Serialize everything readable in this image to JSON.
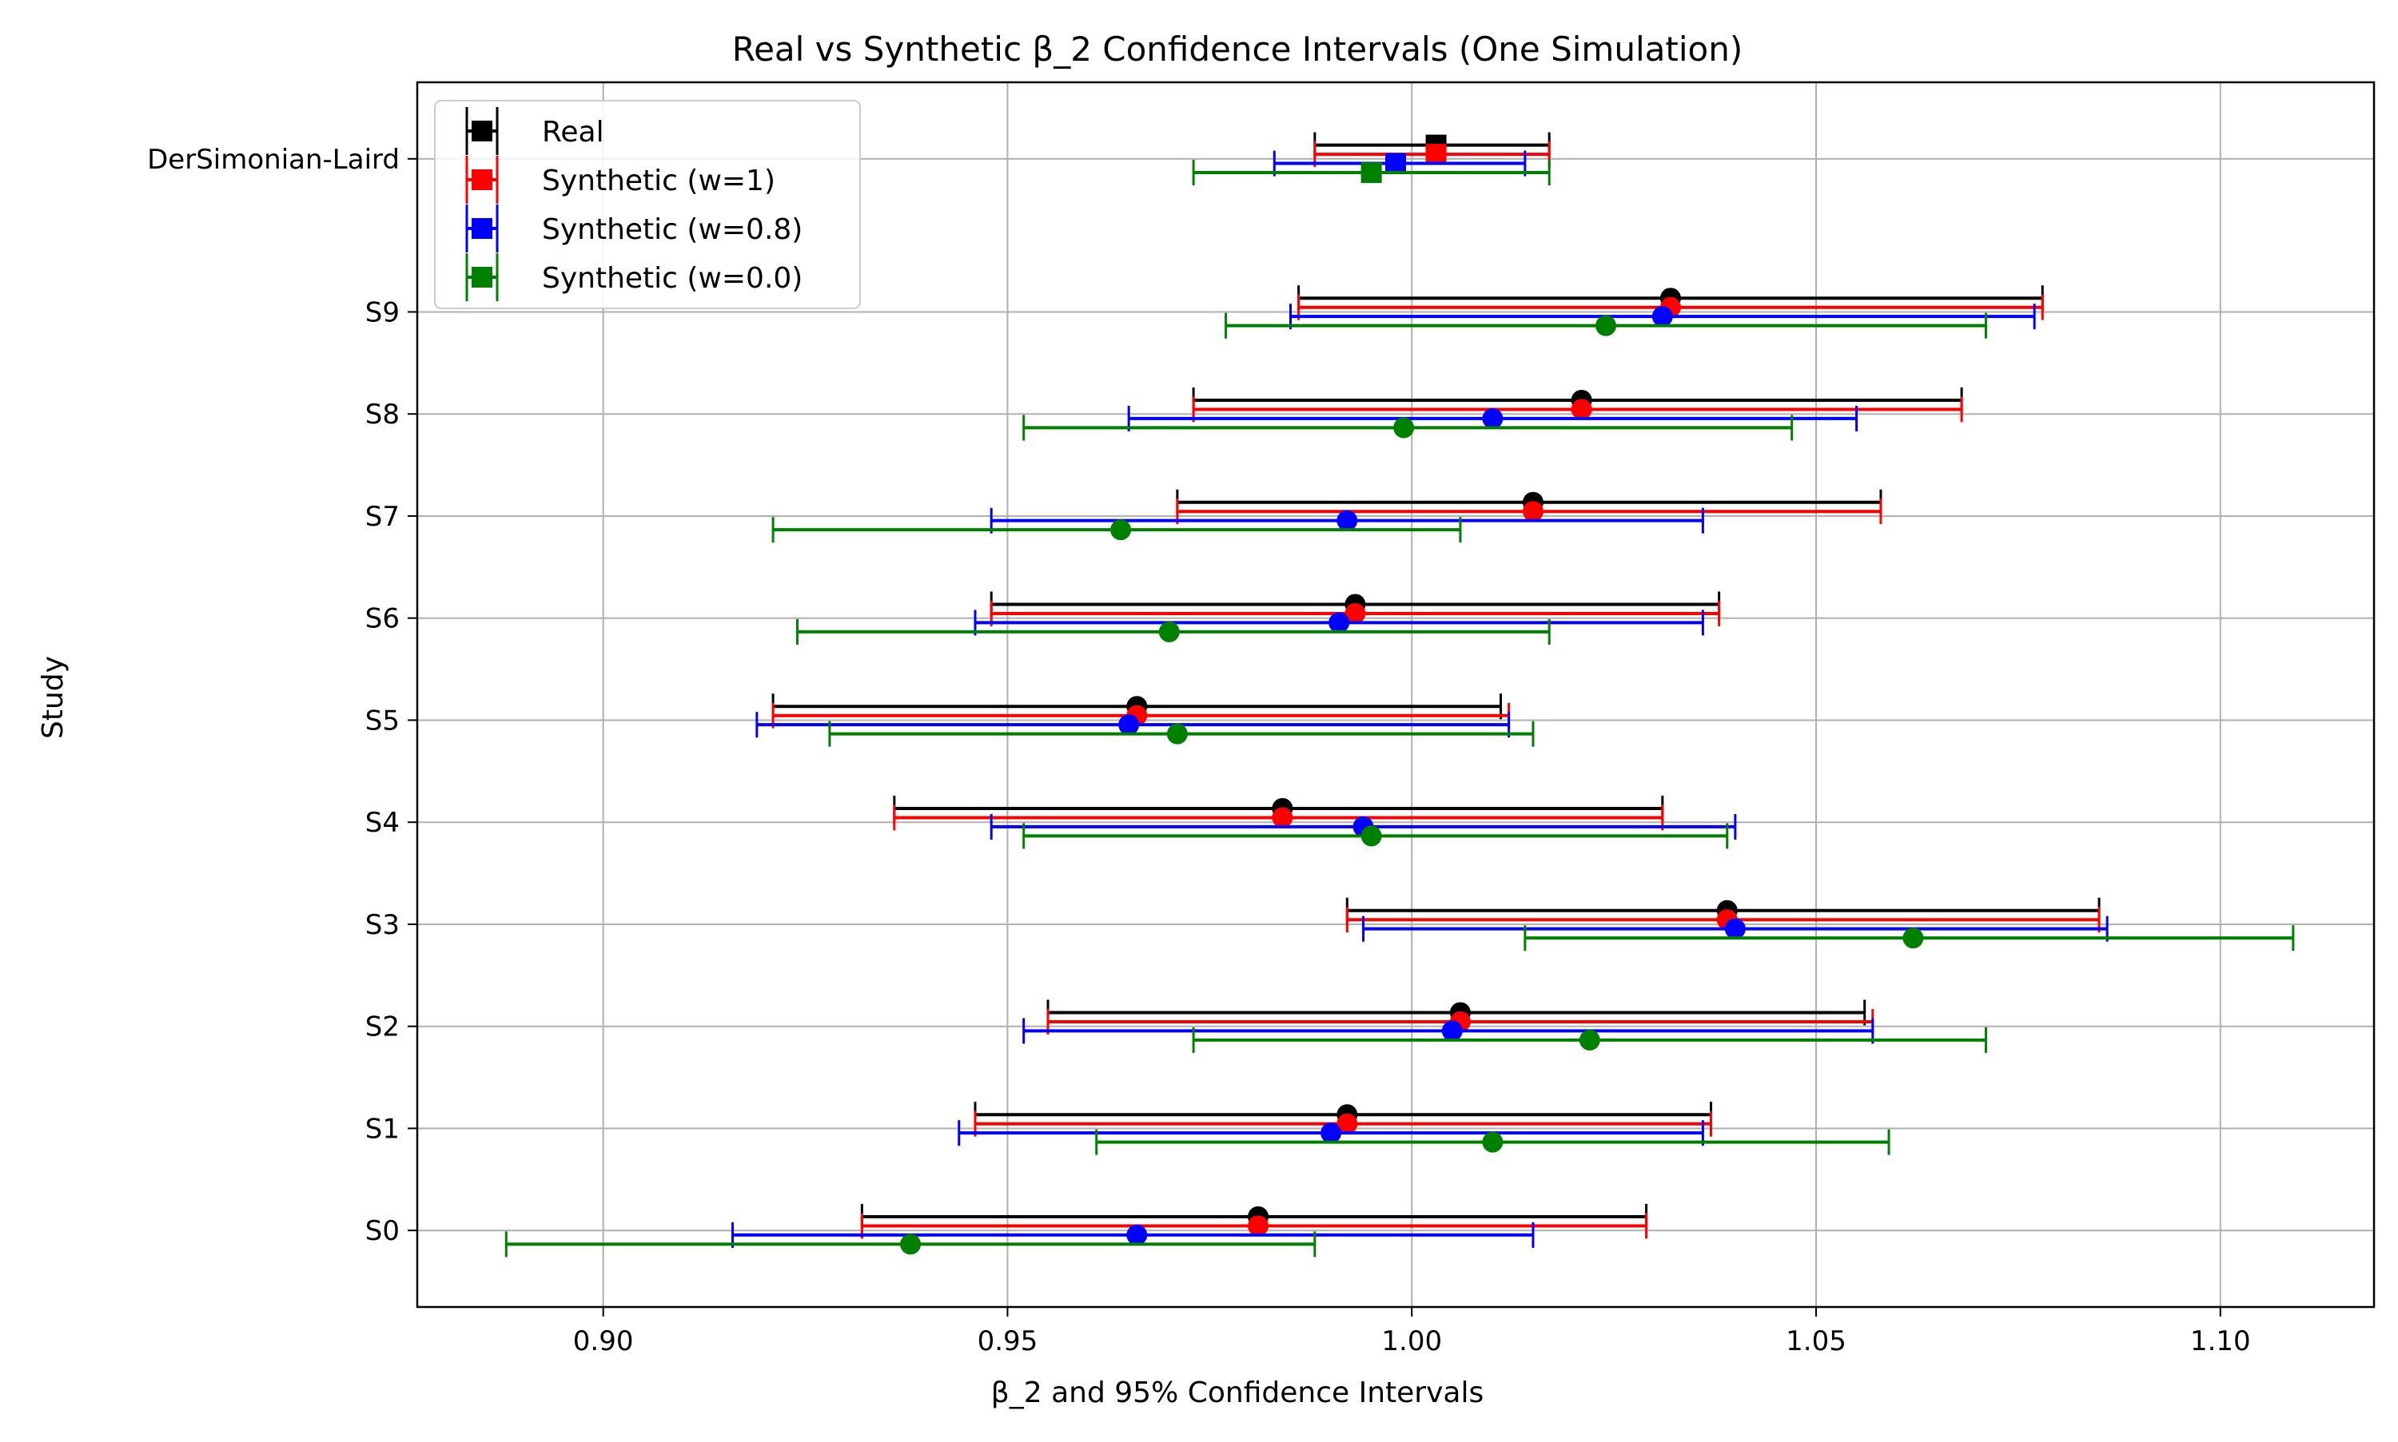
{
  "chart_data": {
    "type": "forest",
    "title": "Real vs Synthetic β_2 Confidence Intervals (One Simulation)",
    "xlabel": "β_2 and 95% Confidence Intervals",
    "ylabel": "Study",
    "xlim": [
      0.877,
      1.119
    ],
    "xticks": [
      0.9,
      0.95,
      1.0,
      1.05,
      1.1
    ],
    "xtick_labels": [
      "0.90",
      "0.95",
      "1.00",
      "1.05",
      "1.10"
    ],
    "studies": [
      "S0",
      "S1",
      "S2",
      "S3",
      "S4",
      "S5",
      "S6",
      "S7",
      "S8",
      "S9",
      "DerSimonian-Laird"
    ],
    "grid": true,
    "legend_position": "top-left",
    "series": [
      {
        "name": "Real",
        "color": "#000000",
        "points": [
          {
            "study": "S0",
            "estimate": 0.981,
            "lower": 0.932,
            "upper": 1.029
          },
          {
            "study": "S1",
            "estimate": 0.992,
            "lower": 0.946,
            "upper": 1.037
          },
          {
            "study": "S2",
            "estimate": 1.006,
            "lower": 0.955,
            "upper": 1.056
          },
          {
            "study": "S3",
            "estimate": 1.039,
            "lower": 0.992,
            "upper": 1.085
          },
          {
            "study": "S4",
            "estimate": 0.984,
            "lower": 0.936,
            "upper": 1.031
          },
          {
            "study": "S5",
            "estimate": 0.966,
            "lower": 0.921,
            "upper": 1.011
          },
          {
            "study": "S6",
            "estimate": 0.993,
            "lower": 0.948,
            "upper": 1.038
          },
          {
            "study": "S7",
            "estimate": 1.015,
            "lower": 0.971,
            "upper": 1.058
          },
          {
            "study": "S8",
            "estimate": 1.021,
            "lower": 0.973,
            "upper": 1.068
          },
          {
            "study": "S9",
            "estimate": 1.032,
            "lower": 0.986,
            "upper": 1.078
          },
          {
            "study": "DerSimonian-Laird",
            "estimate": 1.003,
            "lower": 0.988,
            "upper": 1.017
          }
        ]
      },
      {
        "name": "Synthetic (w=1)",
        "color": "#ff0000",
        "points": [
          {
            "study": "S0",
            "estimate": 0.981,
            "lower": 0.932,
            "upper": 1.029
          },
          {
            "study": "S1",
            "estimate": 0.992,
            "lower": 0.946,
            "upper": 1.037
          },
          {
            "study": "S2",
            "estimate": 1.006,
            "lower": 0.955,
            "upper": 1.057
          },
          {
            "study": "S3",
            "estimate": 1.039,
            "lower": 0.992,
            "upper": 1.085
          },
          {
            "study": "S4",
            "estimate": 0.984,
            "lower": 0.936,
            "upper": 1.031
          },
          {
            "study": "S5",
            "estimate": 0.966,
            "lower": 0.921,
            "upper": 1.012
          },
          {
            "study": "S6",
            "estimate": 0.993,
            "lower": 0.948,
            "upper": 1.038
          },
          {
            "study": "S7",
            "estimate": 1.015,
            "lower": 0.971,
            "upper": 1.058
          },
          {
            "study": "S8",
            "estimate": 1.021,
            "lower": 0.973,
            "upper": 1.068
          },
          {
            "study": "S9",
            "estimate": 1.032,
            "lower": 0.986,
            "upper": 1.078
          },
          {
            "study": "DerSimonian-Laird",
            "estimate": 1.003,
            "lower": 0.988,
            "upper": 1.017
          }
        ]
      },
      {
        "name": "Synthetic (w=0.8)",
        "color": "#0000ff",
        "points": [
          {
            "study": "S0",
            "estimate": 0.966,
            "lower": 0.916,
            "upper": 1.015
          },
          {
            "study": "S1",
            "estimate": 0.99,
            "lower": 0.944,
            "upper": 1.036
          },
          {
            "study": "S2",
            "estimate": 1.005,
            "lower": 0.952,
            "upper": 1.057
          },
          {
            "study": "S3",
            "estimate": 1.04,
            "lower": 0.994,
            "upper": 1.086
          },
          {
            "study": "S4",
            "estimate": 0.994,
            "lower": 0.948,
            "upper": 1.04
          },
          {
            "study": "S5",
            "estimate": 0.965,
            "lower": 0.919,
            "upper": 1.012
          },
          {
            "study": "S6",
            "estimate": 0.991,
            "lower": 0.946,
            "upper": 1.036
          },
          {
            "study": "S7",
            "estimate": 0.992,
            "lower": 0.948,
            "upper": 1.036
          },
          {
            "study": "S8",
            "estimate": 1.01,
            "lower": 0.965,
            "upper": 1.055
          },
          {
            "study": "S9",
            "estimate": 1.031,
            "lower": 0.985,
            "upper": 1.077
          },
          {
            "study": "DerSimonian-Laird",
            "estimate": 0.998,
            "lower": 0.983,
            "upper": 1.014
          }
        ]
      },
      {
        "name": "Synthetic (w=0.0)",
        "color": "#008000",
        "points": [
          {
            "study": "S0",
            "estimate": 0.938,
            "lower": 0.888,
            "upper": 0.988
          },
          {
            "study": "S1",
            "estimate": 1.01,
            "lower": 0.961,
            "upper": 1.059
          },
          {
            "study": "S2",
            "estimate": 1.022,
            "lower": 0.973,
            "upper": 1.071
          },
          {
            "study": "S3",
            "estimate": 1.062,
            "lower": 1.014,
            "upper": 1.109
          },
          {
            "study": "S4",
            "estimate": 0.995,
            "lower": 0.952,
            "upper": 1.039
          },
          {
            "study": "S5",
            "estimate": 0.971,
            "lower": 0.928,
            "upper": 1.015
          },
          {
            "study": "S6",
            "estimate": 0.97,
            "lower": 0.924,
            "upper": 1.017
          },
          {
            "study": "S7",
            "estimate": 0.964,
            "lower": 0.921,
            "upper": 1.006
          },
          {
            "study": "S8",
            "estimate": 0.999,
            "lower": 0.952,
            "upper": 1.047
          },
          {
            "study": "S9",
            "estimate": 1.024,
            "lower": 0.977,
            "upper": 1.071
          },
          {
            "study": "DerSimonian-Laird",
            "estimate": 0.995,
            "lower": 0.973,
            "upper": 1.017
          }
        ]
      }
    ]
  }
}
